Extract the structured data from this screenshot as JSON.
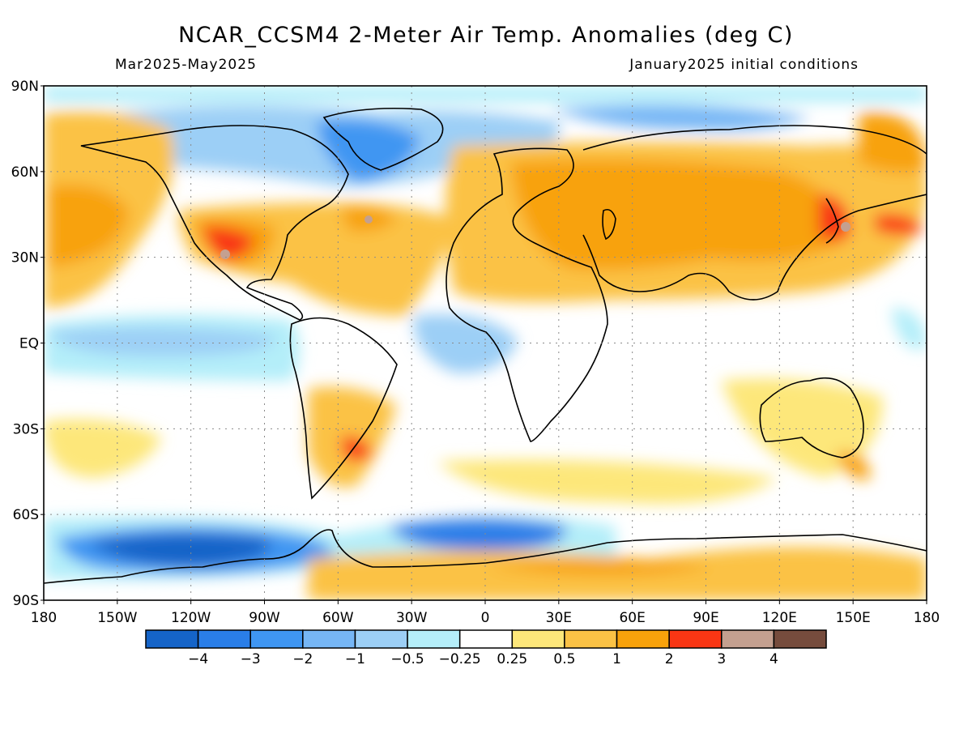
{
  "title": "NCAR_CCSM4 2-Meter Air Temp. Anomalies (deg C)",
  "period": "Mar2025-May2025",
  "init": "January2025 initial conditions",
  "lat_labels": [
    "90N",
    "60N",
    "30N",
    "EQ",
    "30S",
    "60S",
    "90S"
  ],
  "lon_labels": [
    "180",
    "150W",
    "120W",
    "90W",
    "60W",
    "30W",
    "0",
    "30E",
    "60E",
    "90E",
    "120E",
    "150E",
    "180"
  ],
  "colorbar": {
    "colors": [
      "#1564c8",
      "#2a7ee8",
      "#3f96f2",
      "#76b6f5",
      "#9ccff6",
      "#b4eef9",
      "#ffffff",
      "#fde77a",
      "#fbc245",
      "#f8a20b",
      "#f93614",
      "#c4a090",
      "#764c3d"
    ],
    "labels": [
      "-4",
      "-3",
      "-2",
      "-1",
      "-0.5",
      "-0.25",
      "0.25",
      "0.5",
      "1",
      "2",
      "3",
      "4"
    ]
  },
  "map": {
    "background": "#ffffff",
    "coastline_color": "#000000",
    "grid_color": "#8a8a8a"
  }
}
